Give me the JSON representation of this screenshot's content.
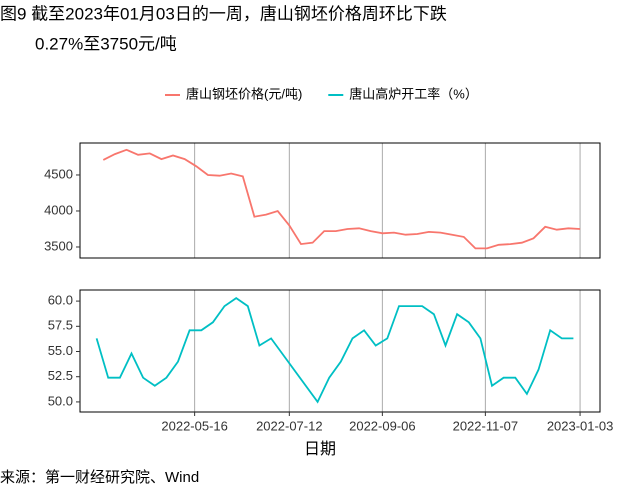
{
  "title": [
    "图9  截至2023年01月03日的一周，唐山钢坯价格周环比下跌",
    "0.27%至3750元/吨"
  ],
  "source": "来源：第一财经研究院、Wind",
  "chart_data": [
    {
      "type": "line",
      "x": [
        "2022-03-22",
        "2022-03-29",
        "2022-04-05",
        "2022-04-12",
        "2022-04-19",
        "2022-04-26",
        "2022-05-03",
        "2022-05-10",
        "2022-05-17",
        "2022-05-24",
        "2022-05-31",
        "2022-06-07",
        "2022-06-14",
        "2022-06-21",
        "2022-06-28",
        "2022-07-05",
        "2022-07-12",
        "2022-07-19",
        "2022-07-26",
        "2022-08-02",
        "2022-08-09",
        "2022-08-16",
        "2022-08-23",
        "2022-08-30",
        "2022-09-06",
        "2022-09-13",
        "2022-09-20",
        "2022-09-27",
        "2022-10-04",
        "2022-10-11",
        "2022-10-18",
        "2022-10-25",
        "2022-11-01",
        "2022-11-08",
        "2022-11-15",
        "2022-11-22",
        "2022-11-29",
        "2022-12-06",
        "2022-12-13",
        "2022-12-20",
        "2022-12-27",
        "2023-01-03"
      ],
      "series": [
        {
          "name": "唐山钢坯价格(元/吨)",
          "color": "#f8766d",
          "values": [
            4710,
            4790,
            4850,
            4780,
            4800,
            4720,
            4770,
            4720,
            4620,
            4500,
            4490,
            4520,
            4480,
            3920,
            3950,
            4000,
            3800,
            3540,
            3560,
            3720,
            3720,
            3750,
            3760,
            3720,
            3690,
            3700,
            3670,
            3680,
            3710,
            3700,
            3670,
            3640,
            3480,
            3480,
            3530,
            3540,
            3560,
            3620,
            3780,
            3740,
            3760,
            3750
          ]
        }
      ],
      "xlim": [
        "2022-03-08",
        "2023-01-15"
      ],
      "ylim": [
        3347,
        4944
      ],
      "yticks": [
        3500,
        4000,
        4500
      ]
    },
    {
      "type": "line",
      "x": [
        "2022-03-18",
        "2022-03-25",
        "2022-04-01",
        "2022-04-08",
        "2022-04-15",
        "2022-04-22",
        "2022-04-29",
        "2022-05-06",
        "2022-05-13",
        "2022-05-20",
        "2022-05-27",
        "2022-06-03",
        "2022-06-10",
        "2022-06-17",
        "2022-06-24",
        "2022-07-01",
        "2022-07-29",
        "2022-08-05",
        "2022-08-12",
        "2022-08-19",
        "2022-08-26",
        "2022-09-02",
        "2022-09-09",
        "2022-09-16",
        "2022-09-23",
        "2022-09-30",
        "2022-10-07",
        "2022-10-14",
        "2022-10-21",
        "2022-10-28",
        "2022-11-04",
        "2022-11-11",
        "2022-11-18",
        "2022-11-25",
        "2022-12-02",
        "2022-12-09",
        "2022-12-16",
        "2022-12-23",
        "2022-12-30"
      ],
      "series": [
        {
          "name": "唐山高炉开工率（%）",
          "color": "#00bfc4",
          "values": [
            56.3,
            52.4,
            52.4,
            54.8,
            52.4,
            51.6,
            52.4,
            54.0,
            57.1,
            57.1,
            57.9,
            59.5,
            60.3,
            59.5,
            55.6,
            56.3,
            50.0,
            52.4,
            54.0,
            56.3,
            57.1,
            55.6,
            56.3,
            59.5,
            59.5,
            59.5,
            58.7,
            55.6,
            58.7,
            57.9,
            56.3,
            51.6,
            52.4,
            52.4,
            50.8,
            53.2,
            57.1,
            56.3,
            56.3
          ]
        }
      ],
      "xlim": [
        "2022-03-08",
        "2023-01-15"
      ],
      "xticks": [
        "2022-05-16",
        "2022-07-12",
        "2022-09-06",
        "2022-11-07",
        "2023-01-03"
      ],
      "ylim": [
        49.0,
        61.1
      ],
      "yticks": [
        {
          "value": 50,
          "label": "50.0"
        },
        52.5,
        {
          "value": 55,
          "label": "55.0"
        },
        57.5,
        {
          "value": 60,
          "label": "60.0"
        }
      ],
      "xlabel": "日期"
    }
  ]
}
